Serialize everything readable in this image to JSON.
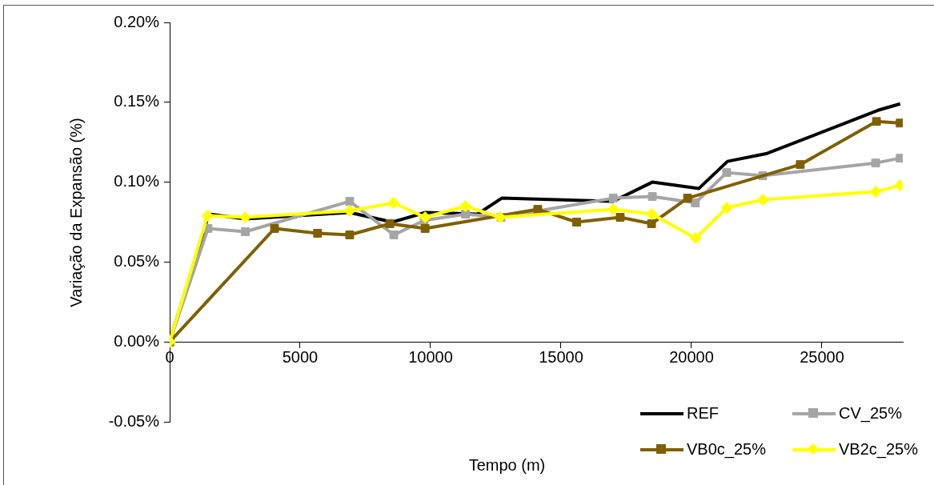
{
  "chart_data": {
    "type": "line",
    "xlabel": "Tempo (m)",
    "ylabel": "Variação da Expansão (%)",
    "xlim": [
      0,
      28100
    ],
    "xticks": [
      0,
      5000,
      10000,
      15000,
      20000,
      25000
    ],
    "ylim": [
      -0.05,
      0.2
    ],
    "yticks": [
      {
        "value": -0.05,
        "label": "-0.05%"
      },
      {
        "value": 0,
        "label": "0.00%"
      },
      {
        "value": 0.05,
        "label": "0.05%"
      },
      {
        "value": 0.1,
        "label": "0.10%"
      },
      {
        "value": 0.15,
        "label": "0.15%"
      },
      {
        "value": 0.2,
        "label": "0.20%"
      }
    ],
    "grid": false,
    "legend": "bottom right",
    "line_style": "solid",
    "series": [
      {
        "name": "REF",
        "color": "#000000",
        "marker": "none",
        "x": [
          0,
          1500,
          2900,
          6900,
          8530,
          9800,
          11800,
          12730,
          17000,
          18500,
          20280,
          21380,
          22900,
          27150,
          28000
        ],
        "values": [
          0,
          0.08,
          0.077,
          0.081,
          0.075,
          0.081,
          0.08,
          0.09,
          0.088,
          0.1,
          0.096,
          0.113,
          0.118,
          0.145,
          0.149
        ]
      },
      {
        "name": "CV_25%",
        "color": "#a5a5a5",
        "marker": "square",
        "x": [
          0,
          1470,
          2900,
          6900,
          8590,
          9750,
          11340,
          12700,
          17000,
          18500,
          20150,
          21350,
          22730,
          27060,
          28000
        ],
        "values": [
          0,
          0.071,
          0.069,
          0.088,
          0.067,
          0.076,
          0.08,
          0.078,
          0.09,
          0.091,
          0.087,
          0.106,
          0.104,
          0.112,
          0.115
        ]
      },
      {
        "name": "VB0c_25%",
        "color": "#7f6000",
        "marker": "square",
        "x": [
          0,
          4020,
          5670,
          6900,
          8440,
          9790,
          14110,
          15600,
          17270,
          18470,
          19850,
          24170,
          27090,
          28000
        ],
        "values": [
          0,
          0.071,
          0.068,
          0.067,
          0.074,
          0.071,
          0.083,
          0.075,
          0.078,
          0.074,
          0.09,
          0.111,
          0.138,
          0.137
        ]
      },
      {
        "name": "VB2c_25%",
        "color": "#ffff00",
        "marker": "diamond",
        "x": [
          0,
          1450,
          2900,
          6900,
          8580,
          9790,
          11340,
          12670,
          17000,
          18480,
          20160,
          21360,
          22740,
          27060,
          28000
        ],
        "values": [
          0,
          0.079,
          0.078,
          0.082,
          0.087,
          0.078,
          0.085,
          0.078,
          0.083,
          0.08,
          0.065,
          0.084,
          0.089,
          0.094,
          0.098
        ]
      }
    ]
  }
}
